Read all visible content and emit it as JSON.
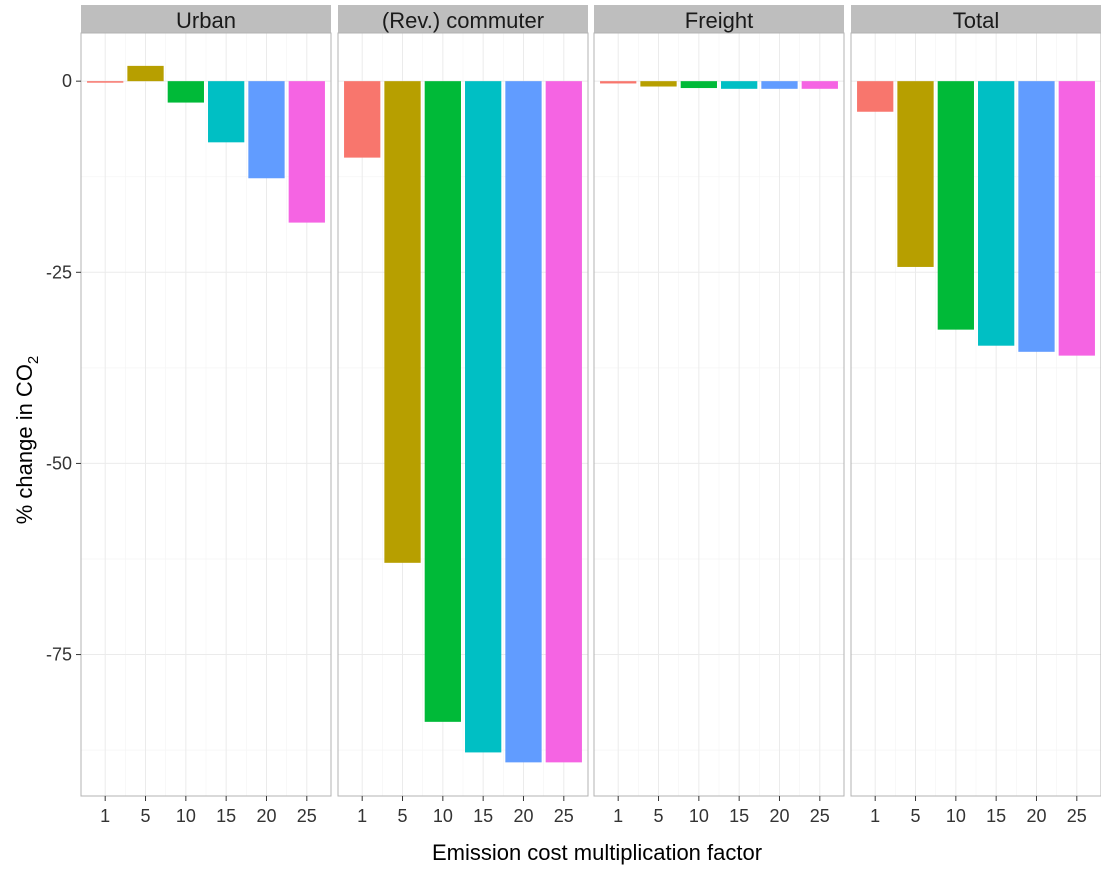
{
  "chart_data": {
    "type": "bar",
    "facets": [
      "Urban",
      "(Rev.) commuter",
      "Freight",
      "Total"
    ],
    "categories": [
      "1",
      "5",
      "10",
      "15",
      "20",
      "25"
    ],
    "colors": [
      "#F8766D",
      "#B79F00",
      "#00BA38",
      "#00BFC4",
      "#619CFF",
      "#F564E3"
    ],
    "series": [
      {
        "facet": "Urban",
        "values": [
          -0.2,
          2.0,
          -2.8,
          -8.0,
          -12.7,
          -18.5
        ]
      },
      {
        "facet": "(Rev.) commuter",
        "values": [
          -10.0,
          -63.0,
          -83.8,
          -87.8,
          -89.1,
          -89.1
        ]
      },
      {
        "facet": "Freight",
        "values": [
          -0.3,
          -0.7,
          -0.9,
          -1.0,
          -1.0,
          -1.0
        ]
      },
      {
        "facet": "Total",
        "values": [
          -4.0,
          -24.3,
          -32.5,
          -34.6,
          -35.4,
          -35.9
        ]
      }
    ],
    "ylim": [
      -93.5,
      6.3
    ],
    "yticks": [
      0,
      -25,
      -50,
      -75
    ],
    "xlabel": "Emission cost multiplication factor",
    "ylabel": "% change in CO",
    "ylabel_sub": "2",
    "grid": true,
    "legend": "none"
  }
}
